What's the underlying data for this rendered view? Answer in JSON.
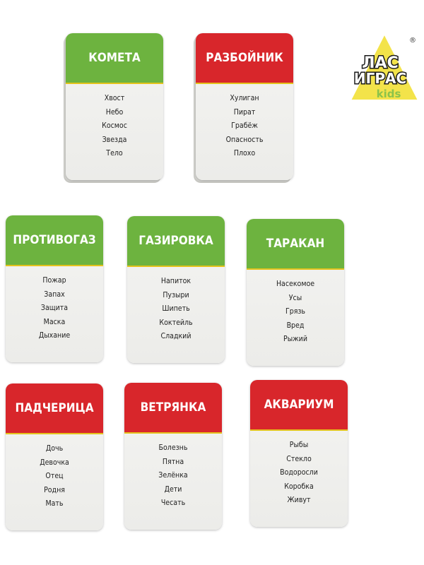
{
  "brand": {
    "line1": "ЛАС",
    "line2": "ИГРАС",
    "line3": "kids",
    "registered": "®"
  },
  "colors": {
    "green": "#6db33f",
    "red": "#d8262b",
    "accent_line": "#e4c31c",
    "logo_triangle": "#f3e34a"
  },
  "cards": [
    {
      "title": "КОМЕТА",
      "color": "green",
      "words": [
        "Хвост",
        "Небо",
        "Космос",
        "Звезда",
        "Тело"
      ]
    },
    {
      "title": "РАЗБОЙНИК",
      "color": "red",
      "words": [
        "Хулиган",
        "Пират",
        "Грабёж",
        "Опасность",
        "Плохо"
      ]
    },
    {
      "title": "ПРОТИВОГАЗ",
      "color": "green",
      "words": [
        "Пожар",
        "Запах",
        "Защита",
        "Маска",
        "Дыхание"
      ]
    },
    {
      "title": "ГАЗИРОВКА",
      "color": "green",
      "words": [
        "Напиток",
        "Пузыри",
        "Шипеть",
        "Коктейль",
        "Сладкий"
      ]
    },
    {
      "title": "ТАРАКАН",
      "color": "green",
      "words": [
        "Насекомое",
        "Усы",
        "Грязь",
        "Вред",
        "Рыжий"
      ]
    },
    {
      "title": "ПАДЧЕРИЦА",
      "color": "red",
      "words": [
        "Дочь",
        "Девочка",
        "Отец",
        "Родня",
        "Мать"
      ]
    },
    {
      "title": "ВЕТРЯНКА",
      "color": "red",
      "words": [
        "Болезнь",
        "Пятна",
        "Зелёнка",
        "Дети",
        "Чесать"
      ]
    },
    {
      "title": "АКВАРИУМ",
      "color": "red",
      "words": [
        "Рыбы",
        "Стекло",
        "Водоросли",
        "Коробка",
        "Живут"
      ]
    }
  ]
}
